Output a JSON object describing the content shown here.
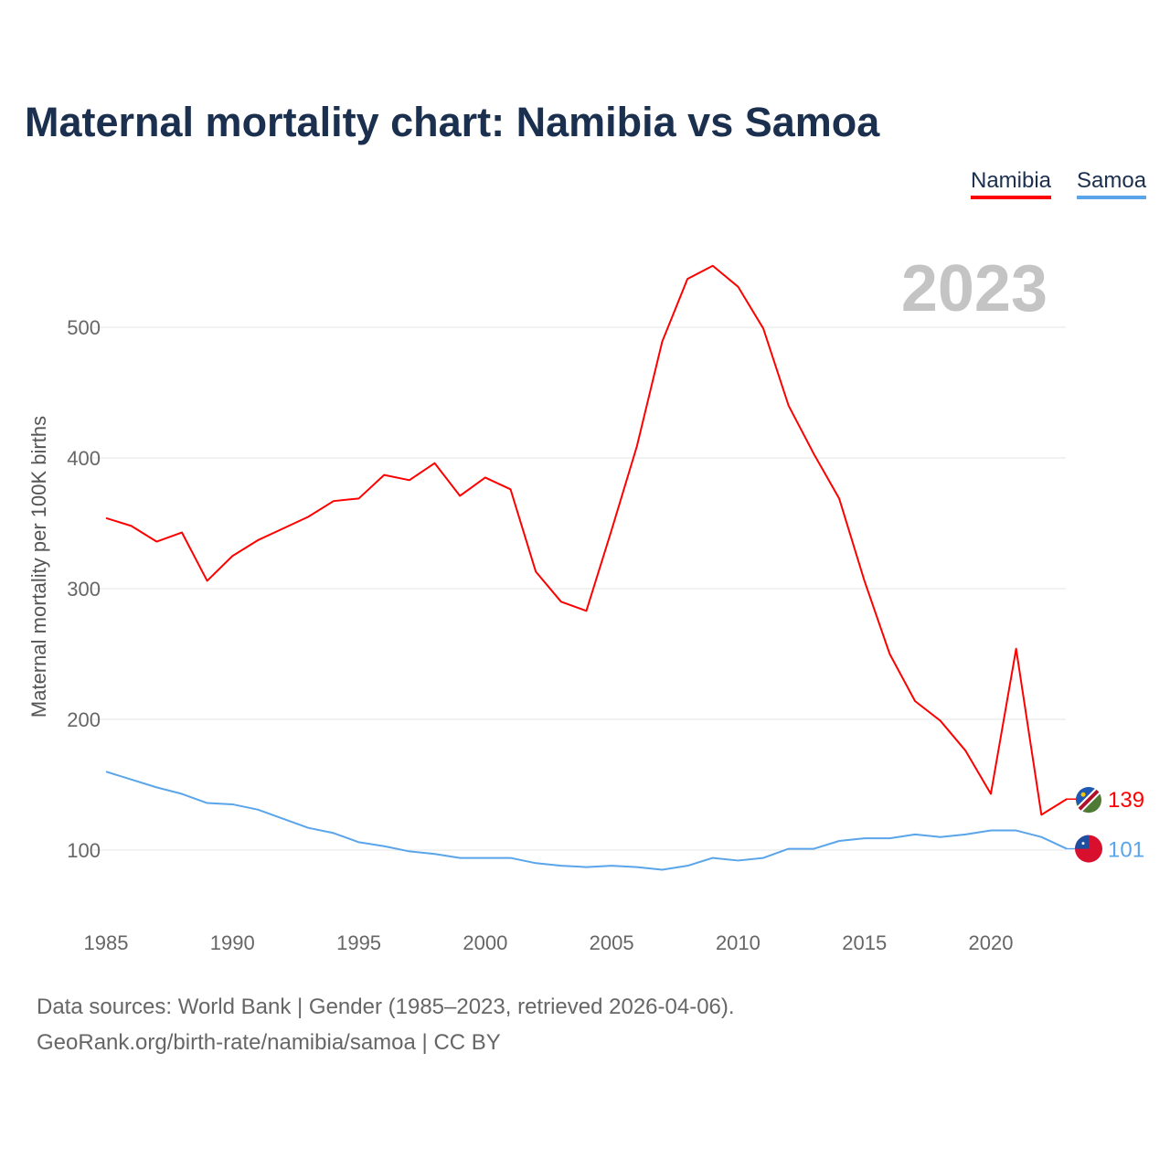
{
  "title": "Maternal mortality chart: Namibia vs Samoa",
  "legend": [
    "Namibia",
    "Samoa"
  ],
  "year_label": "2023",
  "sources": {
    "line1": "Data sources: World Bank | Gender (1985–2023, retrieved 2026-04-06).",
    "line2": "GeoRank.org/birth-rate/namibia/samoa | CC BY"
  },
  "colors": {
    "Namibia": "#ff0000",
    "Samoa": "#5aa5ea"
  },
  "chart_data": {
    "type": "line",
    "title": "Maternal mortality chart: Namibia vs Samoa",
    "xlabel": "",
    "ylabel": "Maternal mortality per 100K births",
    "xlim": [
      1985,
      2023
    ],
    "ylim": [
      50,
      560
    ],
    "x_ticks": [
      1985,
      1990,
      1995,
      2000,
      2005,
      2010,
      2015,
      2020
    ],
    "y_ticks": [
      100,
      200,
      300,
      400,
      500
    ],
    "grid": true,
    "legend_position": "top-right",
    "x": [
      1985,
      1986,
      1987,
      1988,
      1989,
      1990,
      1991,
      1992,
      1993,
      1994,
      1995,
      1996,
      1997,
      1998,
      1999,
      2000,
      2001,
      2002,
      2003,
      2004,
      2005,
      2006,
      2007,
      2008,
      2009,
      2010,
      2011,
      2012,
      2013,
      2014,
      2015,
      2016,
      2017,
      2018,
      2019,
      2020,
      2021,
      2022,
      2023
    ],
    "series": [
      {
        "name": "Namibia",
        "end_label": "139",
        "values": [
          354,
          348,
          336,
          343,
          306,
          325,
          337,
          346,
          355,
          367,
          369,
          387,
          383,
          396,
          371,
          385,
          376,
          313,
          290,
          283,
          345,
          409,
          489,
          537,
          547,
          531,
          499,
          440,
          403,
          369,
          306,
          250,
          214,
          199,
          176,
          143,
          254,
          127,
          139
        ]
      },
      {
        "name": "Samoa",
        "end_label": "101",
        "values": [
          160,
          154,
          148,
          143,
          136,
          135,
          131,
          124,
          117,
          113,
          106,
          103,
          99,
          97,
          94,
          94,
          94,
          90,
          88,
          87,
          88,
          87,
          85,
          88,
          94,
          92,
          94,
          101,
          101,
          107,
          109,
          109,
          112,
          110,
          112,
          115,
          115,
          110,
          101
        ]
      }
    ]
  }
}
